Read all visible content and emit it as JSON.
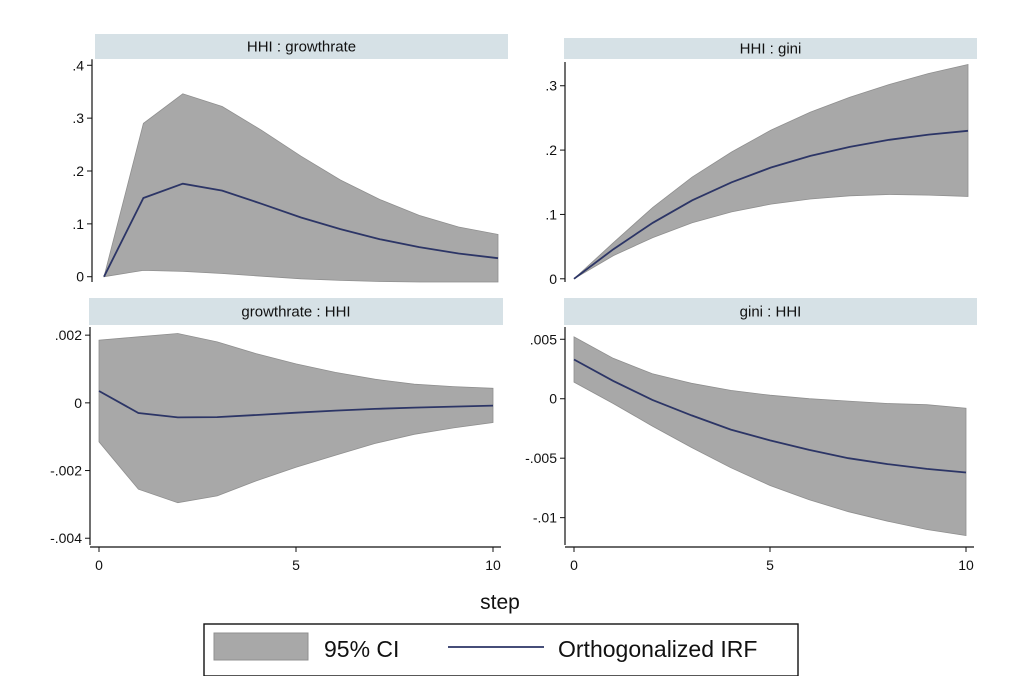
{
  "colors": {
    "strip_bg": "#d6e1e6",
    "ci_fill": "#a8a8a8",
    "irf_line": "#2c3566",
    "background": "#ffffff"
  },
  "xtitle": "step",
  "legend": {
    "position": "bottom-center",
    "ci_label": "95% CI",
    "irf_label": "Orthogonalized IRF"
  },
  "chart_data": [
    {
      "type": "line",
      "title": "HHI : growthrate",
      "x": [
        0,
        1,
        2,
        3,
        4,
        5,
        6,
        7,
        8,
        9,
        10
      ],
      "ylim": [
        -0.01,
        0.41
      ],
      "yticks": [
        0,
        0.1,
        0.2,
        0.3,
        0.4
      ],
      "ytick_labels": [
        "0",
        ".1",
        ".2",
        ".3",
        ".4"
      ],
      "xticks": [],
      "xtick_labels": [],
      "series": [
        {
          "name": "Orthogonalized IRF",
          "values": [
            0,
            0.149,
            0.176,
            0.163,
            0.138,
            0.112,
            0.09,
            0.071,
            0.056,
            0.044,
            0.035
          ]
        },
        {
          "name": "95% CI",
          "type": "band",
          "lower": [
            0,
            0.012,
            0.01,
            0.006,
            0.001,
            -0.004,
            -0.007,
            -0.009,
            -0.01,
            -0.01,
            -0.01
          ],
          "upper": [
            0,
            0.29,
            0.346,
            0.322,
            0.277,
            0.228,
            0.183,
            0.146,
            0.116,
            0.094,
            0.08
          ]
        }
      ]
    },
    {
      "type": "line",
      "title": "HHI : gini",
      "x": [
        0,
        1,
        2,
        3,
        4,
        5,
        6,
        7,
        8,
        9,
        10
      ],
      "ylim": [
        -0.005,
        0.34
      ],
      "yticks": [
        0,
        0.1,
        0.2,
        0.3
      ],
      "ytick_labels": [
        "0",
        ".1",
        ".2",
        ".3"
      ],
      "xticks": [],
      "xtick_labels": [],
      "series": [
        {
          "name": "Orthogonalized IRF",
          "values": [
            0,
            0.046,
            0.087,
            0.122,
            0.15,
            0.173,
            0.191,
            0.205,
            0.216,
            0.224,
            0.23
          ]
        },
        {
          "name": "95% CI",
          "type": "band",
          "lower": [
            0,
            0.036,
            0.064,
            0.087,
            0.104,
            0.116,
            0.124,
            0.129,
            0.131,
            0.13,
            0.128
          ],
          "upper": [
            0,
            0.056,
            0.111,
            0.158,
            0.197,
            0.231,
            0.259,
            0.282,
            0.302,
            0.319,
            0.333
          ]
        }
      ]
    },
    {
      "type": "line",
      "title": "growthrate : HHI",
      "x": [
        0,
        1,
        2,
        3,
        4,
        5,
        6,
        7,
        8,
        9,
        10
      ],
      "ylim": [
        -0.0042,
        0.0023
      ],
      "yticks": [
        -0.004,
        -0.002,
        0,
        0.002
      ],
      "ytick_labels": [
        "-.004",
        "-.002",
        "0",
        ".002"
      ],
      "xticks": [
        0,
        5,
        10
      ],
      "xtick_labels": [
        "0",
        "5",
        "10"
      ],
      "series": [
        {
          "name": "Orthogonalized IRF",
          "values": [
            0.00035,
            -0.0003,
            -0.00043,
            -0.00042,
            -0.00036,
            -0.00029,
            -0.00023,
            -0.00018,
            -0.00014,
            -0.00011,
            -8e-05
          ]
        },
        {
          "name": "95% CI",
          "type": "band",
          "lower": [
            -0.00115,
            -0.00255,
            -0.00295,
            -0.00275,
            -0.0023,
            -0.0019,
            -0.00155,
            -0.0012,
            -0.00093,
            -0.00074,
            -0.00058
          ],
          "upper": [
            0.00185,
            0.00195,
            0.00205,
            0.0018,
            0.00145,
            0.00115,
            0.0009,
            0.0007,
            0.00055,
            0.00048,
            0.00043
          ]
        }
      ]
    },
    {
      "type": "line",
      "title": "gini : HHI",
      "x": [
        0,
        1,
        2,
        3,
        4,
        5,
        6,
        7,
        8,
        9,
        10
      ],
      "ylim": [
        -0.0123,
        0.0062
      ],
      "yticks": [
        -0.01,
        -0.005,
        0,
        0.005
      ],
      "ytick_labels": [
        "-.01",
        "-.005",
        "0",
        ".005"
      ],
      "xticks": [
        0,
        5,
        10
      ],
      "xtick_labels": [
        "0",
        "5",
        "10"
      ],
      "series": [
        {
          "name": "Orthogonalized IRF",
          "values": [
            0.0033,
            0.0015,
            -0.0001,
            -0.0014,
            -0.0026,
            -0.0035,
            -0.0043,
            -0.005,
            -0.0055,
            -0.0059,
            -0.0062
          ]
        },
        {
          "name": "95% CI",
          "type": "band",
          "lower": [
            0.0014,
            -0.0004,
            -0.0023,
            -0.0041,
            -0.0058,
            -0.0073,
            -0.0085,
            -0.0095,
            -0.0103,
            -0.011,
            -0.0115
          ],
          "upper": [
            0.0052,
            0.0034,
            0.0021,
            0.0013,
            0.0007,
            0.0003,
            0.0,
            -0.0002,
            -0.0004,
            -0.0005,
            -0.0008
          ]
        }
      ]
    }
  ]
}
